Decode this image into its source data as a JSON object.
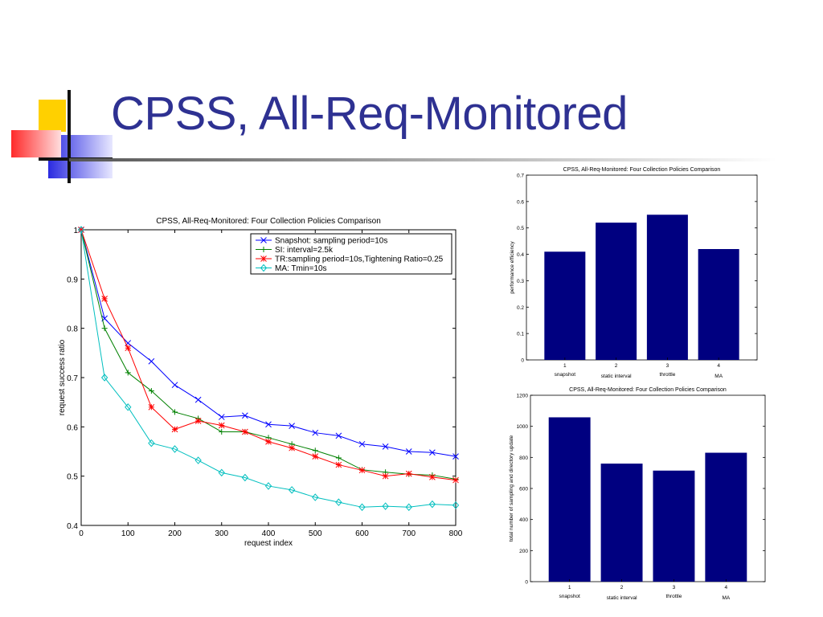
{
  "slide": {
    "title": "CPSS, All-Req-Monitored"
  },
  "colors": {
    "title": "#2e3192",
    "bar_fill": "#000080",
    "deco_yellow": "#ffd000",
    "deco_red": "#ff3b3b",
    "deco_blue": "#3030e0"
  },
  "chart_data": [
    {
      "type": "line",
      "title": "CPSS, All-Req-Monitored: Four Collection Policies Comparison",
      "xlabel": "request index",
      "ylabel": "request success ratio",
      "xlim": [
        0,
        800
      ],
      "ylim": [
        0.4,
        1.0
      ],
      "xticks": [
        0,
        100,
        200,
        300,
        400,
        500,
        600,
        700,
        800
      ],
      "yticks": [
        0.4,
        0.5,
        0.6,
        0.7,
        0.8,
        0.9,
        1
      ],
      "ytick_labels": [
        "0.4",
        "0.5",
        "0.6",
        "0.7",
        "0.8",
        "0.9",
        "1"
      ],
      "grid": false,
      "legend_position": "top-right",
      "x": [
        0,
        50,
        100,
        150,
        200,
        250,
        300,
        350,
        400,
        450,
        500,
        550,
        600,
        650,
        700,
        750,
        800
      ],
      "series": [
        {
          "name": "Snapshot: sampling period=10s",
          "color": "#0000ff",
          "marker": "x",
          "values": [
            1.0,
            0.82,
            0.77,
            0.733,
            0.685,
            0.655,
            0.62,
            0.623,
            0.605,
            0.602,
            0.588,
            0.582,
            0.565,
            0.56,
            0.55,
            0.548,
            0.54
          ]
        },
        {
          "name": "SI: interval=2.5k",
          "color": "#008000",
          "marker": "+",
          "values": [
            1.0,
            0.8,
            0.71,
            0.673,
            0.63,
            0.617,
            0.59,
            0.59,
            0.578,
            0.565,
            0.552,
            0.537,
            0.513,
            0.508,
            0.504,
            0.502,
            0.494
          ]
        },
        {
          "name": "TR:sampling period=10s,Tightening Ratio=0.25",
          "color": "#ff0000",
          "marker": "*",
          "values": [
            1.0,
            0.86,
            0.76,
            0.64,
            0.595,
            0.612,
            0.603,
            0.59,
            0.57,
            0.557,
            0.54,
            0.523,
            0.512,
            0.5,
            0.505,
            0.498,
            0.492
          ]
        },
        {
          "name": "MA: Tmin=10s",
          "color": "#00bfbf",
          "marker": "diamond",
          "values": [
            1.0,
            0.7,
            0.64,
            0.567,
            0.555,
            0.532,
            0.507,
            0.497,
            0.48,
            0.472,
            0.457,
            0.447,
            0.437,
            0.439,
            0.437,
            0.443,
            0.441
          ]
        }
      ]
    },
    {
      "type": "bar",
      "title": "CPSS, All-Req-Monitored: Four Collection Policies Comparison",
      "xlabel": "",
      "ylabel": "performance efficiency",
      "xtick_labels": [
        "1",
        "2",
        "3",
        "4"
      ],
      "categories": [
        "snapshot",
        "static interval",
        "throttle",
        "MA"
      ],
      "values": [
        0.41,
        0.52,
        0.55,
        0.42
      ],
      "ylim": [
        0,
        0.7
      ],
      "yticks": [
        0,
        0.1,
        0.2,
        0.3,
        0.4,
        0.5,
        0.6,
        0.7
      ],
      "ytick_labels": [
        "0",
        "0.1",
        "0.2",
        "0.3",
        "0.4",
        "0.5",
        "0.6",
        "0.7"
      ],
      "grid": false
    },
    {
      "type": "bar",
      "title": "CPSS, All-Req-Monitored: Four Collection Policies Comparison",
      "xlabel": "",
      "ylabel": "total number of sampling and directory update",
      "xtick_labels": [
        "1",
        "2",
        "3",
        "4"
      ],
      "categories": [
        "snapshot",
        "static interval",
        "throttle",
        "MA"
      ],
      "values": [
        1058,
        760,
        715,
        830
      ],
      "ylim": [
        0,
        1200
      ],
      "yticks": [
        0,
        200,
        400,
        600,
        800,
        1000,
        1200
      ],
      "ytick_labels": [
        "0",
        "200",
        "400",
        "600",
        "800",
        "1000",
        "1200"
      ],
      "grid": false
    }
  ]
}
